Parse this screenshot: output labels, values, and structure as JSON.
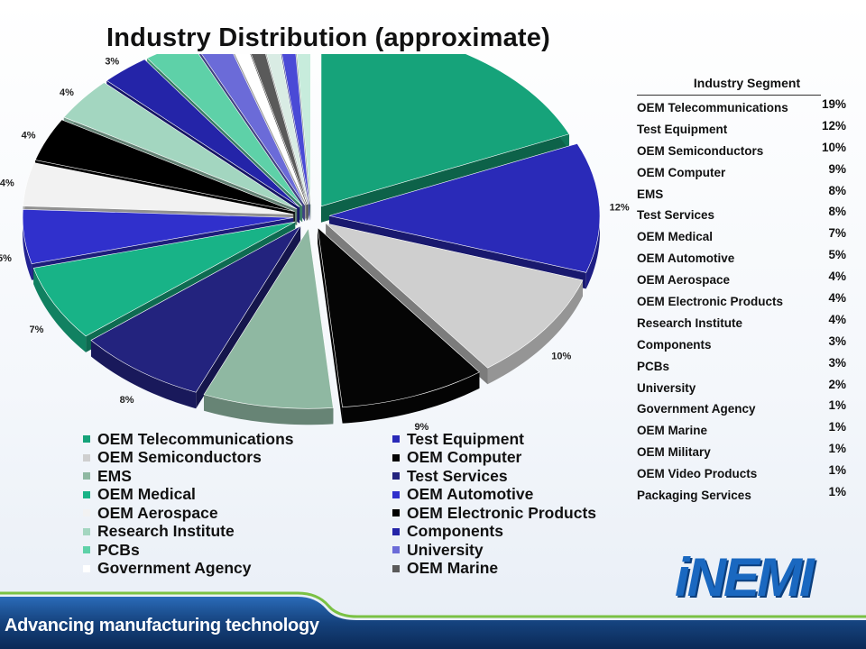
{
  "title": "Industry Distribution (approximate)",
  "chart_data": {
    "type": "pie",
    "title": "Industry Distribution (approximate)",
    "slices": [
      {
        "label": "OEM Telecommunications",
        "value": 19,
        "display": "19%",
        "color": "#16a37a"
      },
      {
        "label": "Test Equipment",
        "value": 12,
        "display": "12%",
        "color": "#2a2ab8"
      },
      {
        "label": "OEM Semiconductors",
        "value": 10,
        "display": "10%",
        "color": "#cfcfcf"
      },
      {
        "label": "OEM Computer",
        "value": 9,
        "display": "9%",
        "color": "#050505"
      },
      {
        "label": "EMS",
        "value": 8,
        "display": "8%",
        "color": "#8fb8a2"
      },
      {
        "label": "Test Services",
        "value": 8,
        "display": "8%",
        "color": "#23237e"
      },
      {
        "label": "OEM Medical",
        "value": 7,
        "display": "7%",
        "color": "#18b387"
      },
      {
        "label": "OEM Automotive",
        "value": 5,
        "display": "5%",
        "color": "#3030cc"
      },
      {
        "label": "OEM Aerospace",
        "value": 4,
        "display": "4%",
        "color": "#f2f2f2"
      },
      {
        "label": "OEM Electronic Products",
        "value": 4,
        "display": "4%",
        "color": "#000000"
      },
      {
        "label": "Research Institute",
        "value": 4,
        "display": "4%",
        "color": "#a3d6c0"
      },
      {
        "label": "Components",
        "value": 3,
        "display": "3%",
        "color": "#2424a8"
      },
      {
        "label": "PCBs",
        "value": 3,
        "display": "3%",
        "color": "#5ed1a8"
      },
      {
        "label": "University",
        "value": 2,
        "display": "2%",
        "color": "#6b6bd8"
      },
      {
        "label": "Government Agency",
        "value": 1,
        "display": "1%",
        "color": "#ffffff"
      },
      {
        "label": "OEM Marine",
        "value": 1,
        "display": "1%",
        "color": "#5a5a5a"
      },
      {
        "label": "OEM Military",
        "value": 1,
        "display": "1%",
        "color": "#d9ece4"
      },
      {
        "label": "OEM Video Products",
        "value": 1,
        "display": "1%",
        "color": "#4a4ad6"
      },
      {
        "label": "Packaging Services",
        "value": 1,
        "display": "1%",
        "color": "#c7ecdc"
      }
    ],
    "legend_items": [
      "OEM Telecommunications",
      "Test Equipment",
      "OEM Semiconductors",
      "OEM Computer",
      "EMS",
      "Test Services",
      "OEM Medical",
      "OEM Automotive",
      "OEM Aerospace",
      "OEM Electronic Products",
      "Research Institute",
      "Components",
      "PCBs",
      "University",
      "Government Agency",
      "OEM Marine"
    ],
    "exploded": true,
    "style": "3d"
  },
  "table": {
    "header": "Industry Segment",
    "rows": [
      {
        "label": "OEM Telecommunications",
        "value": "19%"
      },
      {
        "label": "Test Equipment",
        "value": "12%"
      },
      {
        "label": "OEM Semiconductors",
        "value": "10%"
      },
      {
        "label": "OEM Computer",
        "value": "9%"
      },
      {
        "label": "EMS",
        "value": "8%"
      },
      {
        "label": "Test Services",
        "value": "8%"
      },
      {
        "label": "OEM Medical",
        "value": "7%"
      },
      {
        "label": "OEM Automotive",
        "value": "5%"
      },
      {
        "label": "OEM Aerospace",
        "value": "4%"
      },
      {
        "label": "OEM Electronic Products",
        "value": "4%"
      },
      {
        "label": "Research Institute",
        "value": "4%"
      },
      {
        "label": "Components",
        "value": "3%"
      },
      {
        "label": "PCBs",
        "value": "3%"
      },
      {
        "label": "University",
        "value": "2%"
      },
      {
        "label": "Government Agency",
        "value": "1%"
      },
      {
        "label": "OEM Marine",
        "value": "1%"
      },
      {
        "label": "OEM Military",
        "value": "1%"
      },
      {
        "label": "OEM Video Products",
        "value": "1%"
      },
      {
        "label": "Packaging Services",
        "value": "1%"
      }
    ]
  },
  "footer": {
    "tagline": "Advancing manufacturing technology",
    "logo": "iNEMI"
  },
  "colors": {
    "footer_dark": "#0b2a57",
    "footer_blue": "#1f5fae",
    "accent_green": "#7ac143",
    "logo_blue": "#1a68c0"
  }
}
